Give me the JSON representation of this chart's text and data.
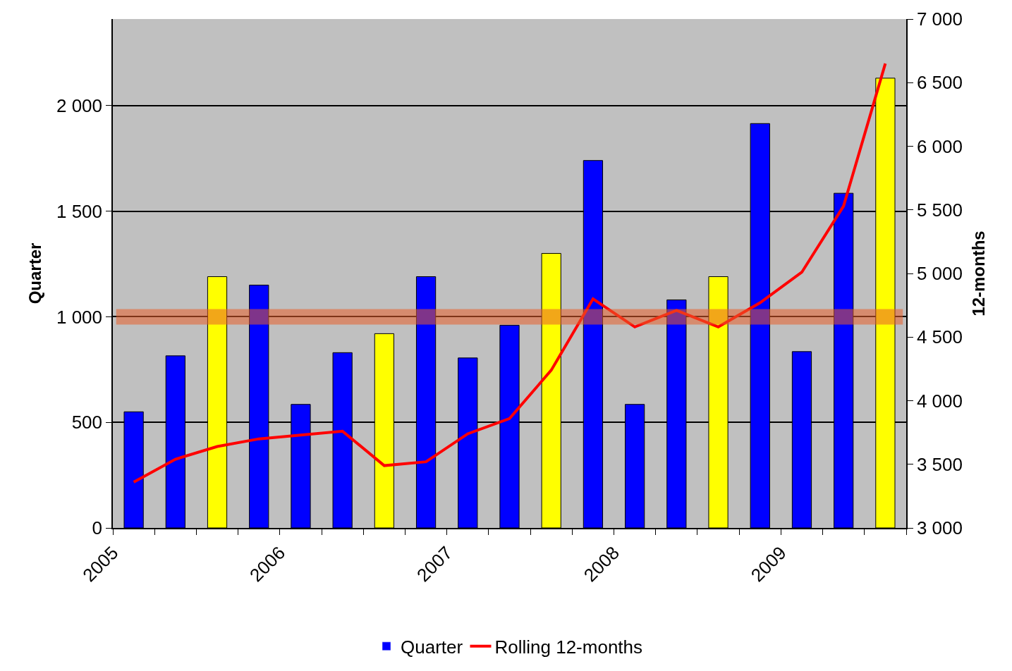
{
  "chart_data": {
    "type": "bar",
    "xlabel": null,
    "ylabel": "Quarter",
    "y2label": "12-months",
    "x": [
      2005.125,
      2005.375,
      2005.625,
      2005.875,
      2006.125,
      2006.375,
      2006.625,
      2006.875,
      2007.125,
      2007.375,
      2007.625,
      2007.875,
      2008.125,
      2008.375,
      2008.625,
      2008.875,
      2009.125,
      2009.375,
      2009.625
    ],
    "series": [
      {
        "name": "Quarter",
        "color": "#0000ff",
        "colors": [
          "#0000ff",
          "#0000ff",
          "#ffff00",
          "#0000ff",
          "#0000ff",
          "#0000ff",
          "#ffff00",
          "#0000ff",
          "#0000ff",
          "#0000ff",
          "#ffff00",
          "#0000ff",
          "#0000ff",
          "#0000ff",
          "#ffff00",
          "#0000ff",
          "#0000ff",
          "#0000ff",
          "#ffff00"
        ],
        "values": [
          550,
          815,
          1190,
          1150,
          585,
          830,
          920,
          1190,
          805,
          960,
          1300,
          1740,
          585,
          1080,
          1190,
          1915,
          835,
          1585,
          2130
        ]
      },
      {
        "name": "Rolling 12-months",
        "type": "line",
        "axis": "y2",
        "color": "#ff0000",
        "values": [
          3360,
          3540,
          3640,
          3700,
          3730,
          3760,
          3490,
          3520,
          3740,
          3860,
          4240,
          4800,
          4580,
          4710,
          4580,
          4770,
          5010,
          5530,
          6650
        ]
      }
    ],
    "xlim": [
      2005,
      2009.75
    ],
    "xticks": [
      {
        "value": 2005,
        "label": "2005"
      },
      {
        "value": 2005.25,
        "label": null
      },
      {
        "value": 2005.5,
        "label": null
      },
      {
        "value": 2005.75,
        "label": null
      },
      {
        "value": 2006,
        "label": "2006"
      },
      {
        "value": 2006.25,
        "label": null
      },
      {
        "value": 2006.5,
        "label": null
      },
      {
        "value": 2006.75,
        "label": null
      },
      {
        "value": 2007,
        "label": "2007"
      },
      {
        "value": 2007.25,
        "label": null
      },
      {
        "value": 2007.5,
        "label": null
      },
      {
        "value": 2007.75,
        "label": null
      },
      {
        "value": 2008,
        "label": "2008"
      },
      {
        "value": 2008.25,
        "label": null
      },
      {
        "value": 2008.5,
        "label": null
      },
      {
        "value": 2008.75,
        "label": null
      },
      {
        "value": 2009,
        "label": "2009"
      },
      {
        "value": 2009.25,
        "label": null
      },
      {
        "value": 2009.5,
        "label": null
      },
      {
        "value": 2009.75,
        "label": null
      }
    ],
    "ylim": [
      0,
      2410
    ],
    "yticks": [
      0,
      500,
      {
        "value": 1000,
        "label": "1 000"
      },
      {
        "value": 1500,
        "label": "1 500"
      },
      {
        "value": 2000,
        "label": "2 000"
      }
    ],
    "y2lim": [
      3000,
      7000
    ],
    "y2ticks": [
      {
        "value": 3000,
        "label": "3 000"
      },
      {
        "value": 3500,
        "label": "3 500"
      },
      {
        "value": 4000,
        "label": "4 000"
      },
      {
        "value": 4500,
        "label": "4 500"
      },
      {
        "value": 5000,
        "label": "5 000"
      },
      {
        "value": 5500,
        "label": "5 500"
      },
      {
        "value": 6000,
        "label": "6 000"
      },
      {
        "value": 6500,
        "label": "6 500"
      },
      {
        "value": 7000,
        "label": "7 000"
      }
    ],
    "ref_lines": [
      {
        "axis": "y",
        "value": 1000,
        "color": "#e8602c"
      }
    ],
    "grid": "y",
    "legend": "bottom",
    "marker": "none",
    "line_style": "solid"
  }
}
